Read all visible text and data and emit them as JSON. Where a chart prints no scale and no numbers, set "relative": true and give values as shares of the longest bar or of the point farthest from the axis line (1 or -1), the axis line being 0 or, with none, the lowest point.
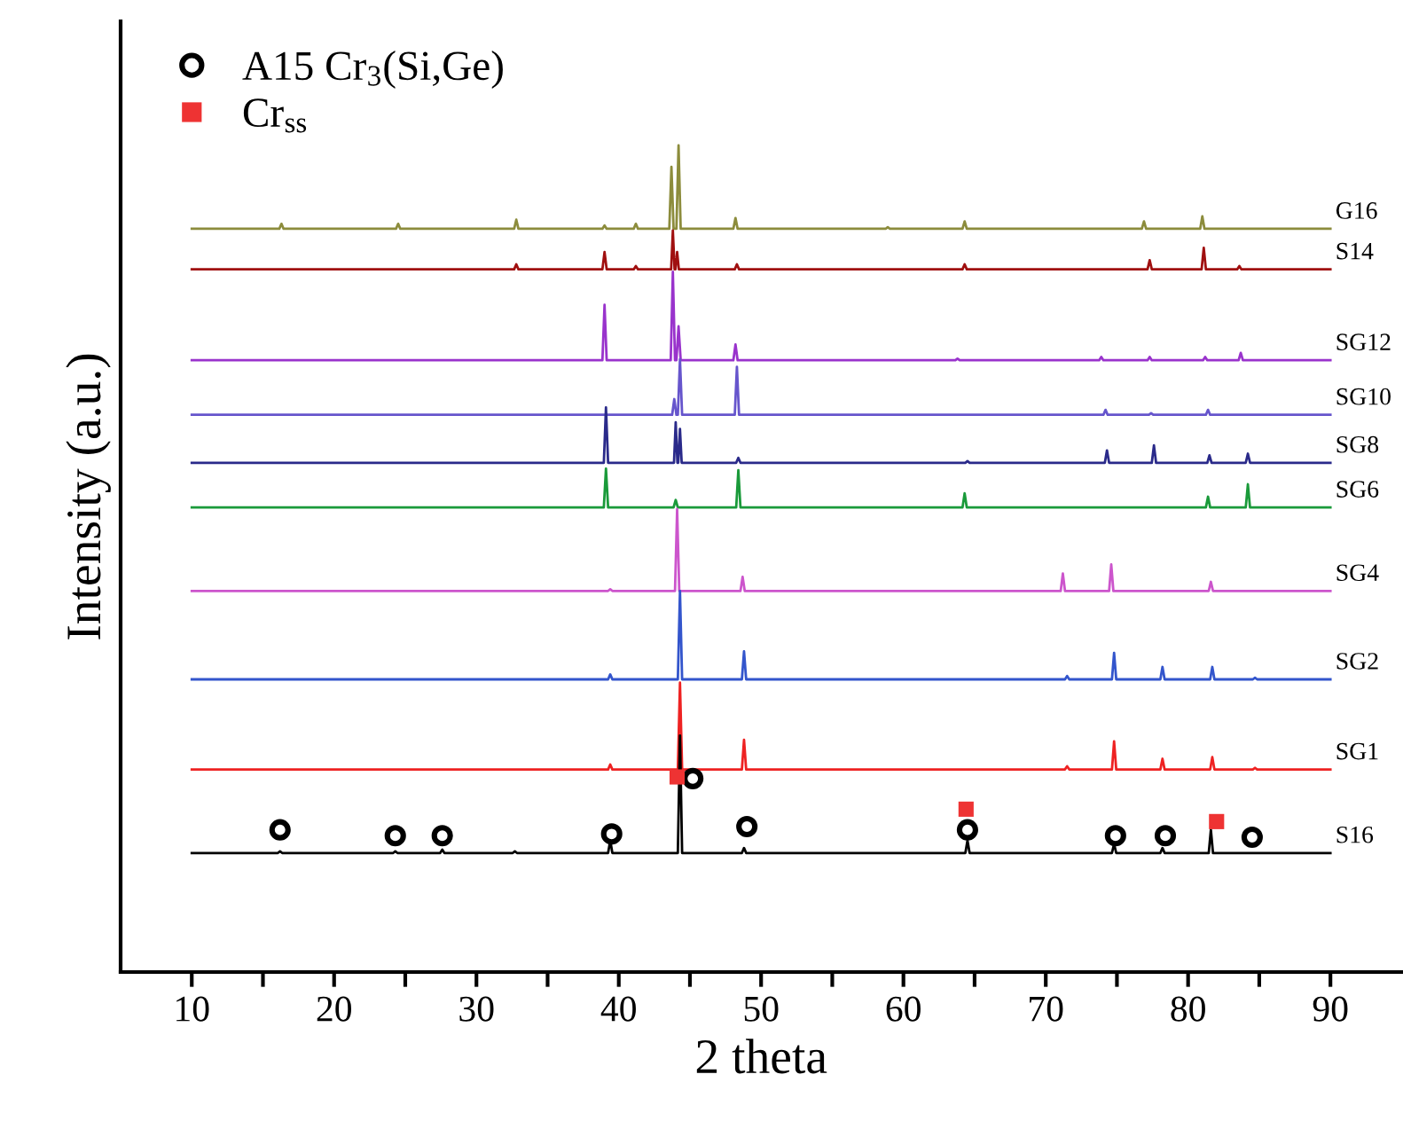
{
  "chart_data": {
    "type": "line",
    "xlabel": "2 theta",
    "ylabel": "Intensity (a.u.)",
    "relative": true,
    "xlim": [
      5,
      95
    ],
    "xticks": [
      10,
      {
        "value": 15,
        "label": null
      },
      20,
      {
        "value": 25,
        "label": null
      },
      30,
      {
        "value": 35,
        "label": null
      },
      40,
      {
        "value": 45,
        "label": null
      },
      50,
      {
        "value": 55,
        "label": null
      },
      60,
      {
        "value": 65,
        "label": null
      },
      70,
      {
        "value": 75,
        "label": null
      },
      80,
      {
        "value": 85,
        "label": null
      },
      90
    ],
    "grid": false,
    "legend": "top left",
    "marker": "none",
    "line_style": "solid",
    "series": [
      {
        "name": "G16",
        "color": "#8c8c3c",
        "x": [
          10,
          16.15,
          16.3,
          16.45,
          24.35,
          24.5,
          24.65,
          32.65,
          32.8,
          32.95,
          38.85,
          39.0,
          39.15,
          41.05,
          41.2,
          41.35,
          43.55,
          43.7,
          43.85,
          44.05,
          44.2,
          44.35,
          48.05,
          48.2,
          48.35,
          58.75,
          58.9,
          59.05,
          64.15,
          64.3,
          64.45,
          76.75,
          76.9,
          77.05,
          80.85,
          81.0,
          81.15,
          90
        ],
        "values": [
          0.899,
          0.899,
          0.905,
          0.899,
          0.899,
          0.905,
          0.899,
          0.899,
          0.91,
          0.899,
          0.899,
          0.903,
          0.899,
          0.899,
          0.905,
          0.899,
          0.899,
          0.974,
          0.899,
          0.899,
          1.0,
          0.899,
          0.899,
          0.912,
          0.899,
          0.899,
          0.901,
          0.899,
          0.899,
          0.908,
          0.899,
          0.899,
          0.908,
          0.899,
          0.899,
          0.914,
          0.899,
          0.899
        ]
      },
      {
        "name": "S14",
        "color": "#a01010",
        "x": [
          10,
          32.65,
          32.8,
          32.95,
          38.85,
          39.0,
          39.15,
          41.05,
          41.2,
          41.35,
          43.68,
          43.8,
          43.92,
          43.98,
          44.1,
          44.22,
          48.15,
          48.3,
          48.45,
          64.15,
          64.3,
          64.45,
          77.15,
          77.3,
          77.45,
          80.95,
          81.1,
          81.25,
          83.45,
          83.6,
          83.75,
          90
        ],
        "values": [
          0.85,
          0.85,
          0.856,
          0.85,
          0.85,
          0.871,
          0.85,
          0.85,
          0.854,
          0.85,
          0.85,
          0.897,
          0.85,
          0.85,
          0.871,
          0.85,
          0.85,
          0.856,
          0.85,
          0.85,
          0.856,
          0.85,
          0.85,
          0.861,
          0.85,
          0.85,
          0.876,
          0.85,
          0.85,
          0.854,
          0.85,
          0.85
        ]
      },
      {
        "name": "SG12",
        "color": "#9933cc",
        "x": [
          10,
          38.85,
          39.0,
          39.15,
          43.65,
          43.8,
          43.95,
          44.05,
          44.2,
          44.35,
          48.05,
          48.2,
          48.35,
          63.65,
          63.8,
          63.95,
          73.75,
          73.9,
          74.05,
          77.15,
          77.3,
          77.45,
          81.05,
          81.2,
          81.35,
          83.55,
          83.7,
          83.85,
          90
        ],
        "values": [
          0.74,
          0.74,
          0.807,
          0.74,
          0.74,
          0.847,
          0.74,
          0.74,
          0.781,
          0.74,
          0.74,
          0.759,
          0.74,
          0.74,
          0.742,
          0.74,
          0.74,
          0.744,
          0.74,
          0.74,
          0.744,
          0.74,
          0.74,
          0.744,
          0.74,
          0.74,
          0.749,
          0.74,
          0.74
        ]
      },
      {
        "name": "SG10",
        "color": "#6655cc",
        "x": [
          10,
          43.75,
          43.9,
          44.05,
          44.15,
          44.3,
          44.45,
          48.15,
          48.3,
          48.45,
          74.05,
          74.2,
          74.35,
          77.25,
          77.4,
          77.55,
          81.25,
          81.4,
          81.55,
          90
        ],
        "values": [
          0.674,
          0.674,
          0.693,
          0.674,
          0.674,
          0.741,
          0.674,
          0.674,
          0.732,
          0.674,
          0.674,
          0.68,
          0.674,
          0.674,
          0.676,
          0.674,
          0.674,
          0.68,
          0.674,
          0.674
        ]
      },
      {
        "name": "SG8",
        "color": "#2a2a8a",
        "x": [
          10,
          38.95,
          39.1,
          39.25,
          43.88,
          44.0,
          44.12,
          44.18,
          44.3,
          44.42,
          48.25,
          48.4,
          48.55,
          64.35,
          64.5,
          64.65,
          74.15,
          74.3,
          74.45,
          77.45,
          77.6,
          77.75,
          81.35,
          81.5,
          81.65,
          84.05,
          84.2,
          84.35,
          90
        ],
        "values": [
          0.616,
          0.616,
          0.683,
          0.616,
          0.616,
          0.665,
          0.616,
          0.616,
          0.657,
          0.616,
          0.616,
          0.622,
          0.616,
          0.616,
          0.618,
          0.616,
          0.616,
          0.631,
          0.616,
          0.616,
          0.637,
          0.616,
          0.616,
          0.625,
          0.616,
          0.616,
          0.627,
          0.616,
          0.616
        ]
      },
      {
        "name": "SG6",
        "color": "#1a9a3a",
        "x": [
          10,
          38.95,
          39.1,
          39.25,
          43.85,
          44.0,
          44.15,
          48.25,
          48.4,
          48.55,
          64.15,
          64.3,
          64.45,
          81.25,
          81.4,
          81.55,
          84.05,
          84.2,
          84.35,
          90
        ],
        "values": [
          0.562,
          0.562,
          0.609,
          0.562,
          0.562,
          0.571,
          0.562,
          0.562,
          0.607,
          0.562,
          0.562,
          0.579,
          0.562,
          0.562,
          0.575,
          0.562,
          0.562,
          0.59,
          0.562,
          0.562
        ]
      },
      {
        "name": "SG4",
        "color": "#cc55cc",
        "x": [
          10,
          39.25,
          39.4,
          39.55,
          43.95,
          44.1,
          44.25,
          48.55,
          48.7,
          48.85,
          71.05,
          71.2,
          71.35,
          74.45,
          74.6,
          74.75,
          81.45,
          81.6,
          81.75,
          90
        ],
        "values": [
          0.461,
          0.461,
          0.463,
          0.461,
          0.461,
          0.56,
          0.461,
          0.461,
          0.478,
          0.461,
          0.461,
          0.482,
          0.461,
          0.461,
          0.493,
          0.461,
          0.461,
          0.472,
          0.461,
          0.461
        ]
      },
      {
        "name": "SG2",
        "color": "#3355cc",
        "x": [
          10,
          39.25,
          39.4,
          39.55,
          44.15,
          44.3,
          44.45,
          48.65,
          48.8,
          48.95,
          71.35,
          71.5,
          71.65,
          74.65,
          74.8,
          74.95,
          78.05,
          78.2,
          78.35,
          81.55,
          81.7,
          81.85,
          84.55,
          84.7,
          84.85,
          90
        ],
        "values": [
          0.354,
          0.354,
          0.36,
          0.354,
          0.354,
          0.461,
          0.354,
          0.354,
          0.388,
          0.354,
          0.354,
          0.358,
          0.354,
          0.354,
          0.386,
          0.354,
          0.354,
          0.369,
          0.354,
          0.354,
          0.369,
          0.354,
          0.354,
          0.356,
          0.354,
          0.354
        ]
      },
      {
        "name": "SG1",
        "color": "#ee2222",
        "x": [
          10,
          39.25,
          39.4,
          39.55,
          44.15,
          44.3,
          44.45,
          48.65,
          48.8,
          48.95,
          71.35,
          71.5,
          71.65,
          74.65,
          74.8,
          74.95,
          78.05,
          78.2,
          78.35,
          81.55,
          81.7,
          81.85,
          84.55,
          84.7,
          84.85,
          90
        ],
        "values": [
          0.245,
          0.245,
          0.251,
          0.245,
          0.245,
          0.35,
          0.245,
          0.245,
          0.281,
          0.245,
          0.245,
          0.249,
          0.245,
          0.245,
          0.279,
          0.245,
          0.245,
          0.258,
          0.245,
          0.245,
          0.26,
          0.245,
          0.245,
          0.247,
          0.245,
          0.245
        ]
      },
      {
        "name": "S16",
        "color": "#000000",
        "x": [
          10,
          16.05,
          16.2,
          16.35,
          24.15,
          24.3,
          24.45,
          27.45,
          27.6,
          27.75,
          32.55,
          32.7,
          32.85,
          39.25,
          39.4,
          39.55,
          44.15,
          44.3,
          44.45,
          48.65,
          48.8,
          48.95,
          64.35,
          64.5,
          64.65,
          74.65,
          74.8,
          74.95,
          78.05,
          78.2,
          78.35,
          81.45,
          81.6,
          81.75,
          90
        ],
        "values": [
          0.144,
          0.144,
          0.146,
          0.144,
          0.144,
          0.146,
          0.144,
          0.144,
          0.148,
          0.144,
          0.144,
          0.146,
          0.144,
          0.144,
          0.159,
          0.144,
          0.144,
          0.286,
          0.144,
          0.144,
          0.15,
          0.144,
          0.144,
          0.159,
          0.144,
          0.144,
          0.155,
          0.144,
          0.144,
          0.15,
          0.144,
          0.144,
          0.172,
          0.144,
          0.144
        ]
      },
      {
        "name": "A15 Cr$_{3}$(Si,Ge)",
        "type": "scatter",
        "marker": "circle",
        "color": "#000000",
        "x": [
          16.2,
          24.3,
          27.6,
          39.5,
          45.2,
          49.0,
          64.5,
          74.9,
          78.4,
          84.5
        ],
        "values": [
          0.172,
          0.165,
          0.165,
          0.167,
          0.234,
          0.176,
          0.172,
          0.165,
          0.165,
          0.163
        ]
      },
      {
        "name": "Cr$_{ss}$",
        "type": "scatter",
        "marker": "square",
        "color": "#ee3333",
        "x": [
          44.1,
          64.4,
          82.0
        ],
        "values": [
          0.236,
          0.197,
          0.182
        ]
      }
    ]
  }
}
